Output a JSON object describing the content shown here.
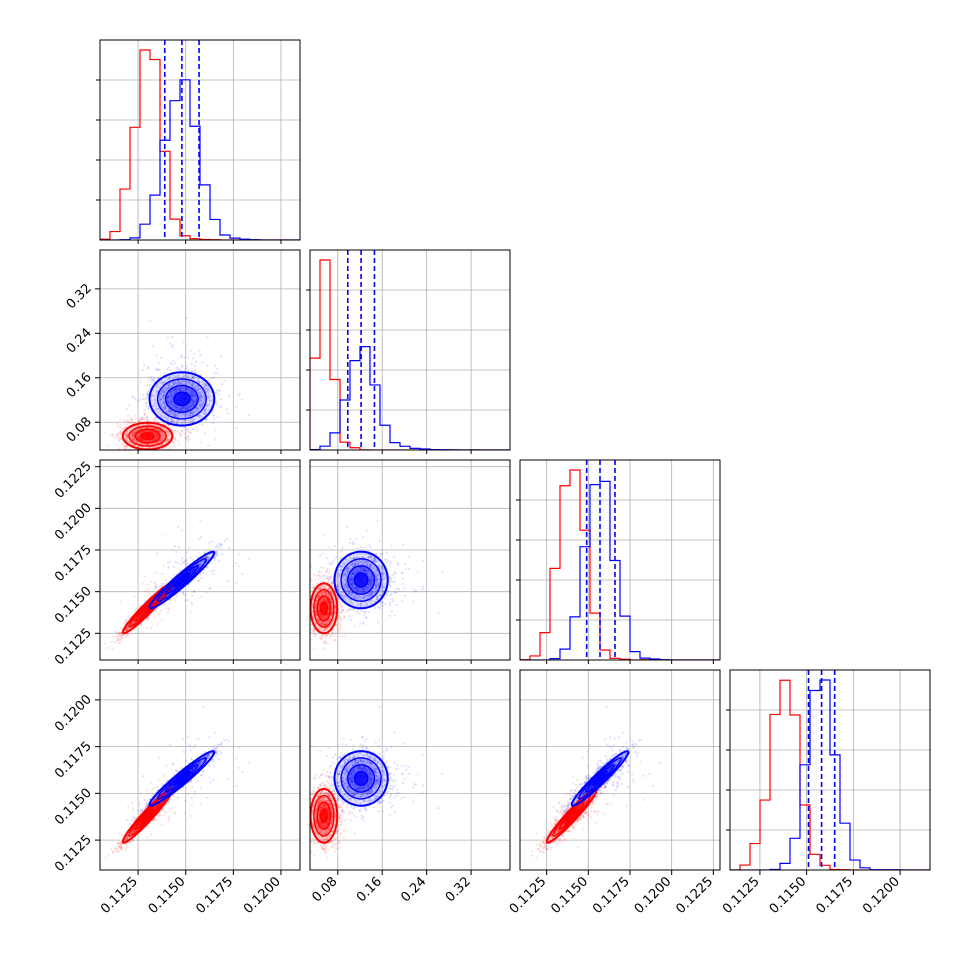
{
  "chart_data": {
    "type": "corner",
    "title": "",
    "grid": true,
    "legend": "none",
    "colors": {
      "red": "#ff0000",
      "blue": "#0000ff"
    },
    "parameters": [
      {
        "range": [
          0.1105,
          0.121
        ],
        "ticks": [
          "0.1125",
          "0.1150",
          "0.1175",
          "0.1200"
        ],
        "tick_values": [
          0.1125,
          0.115,
          0.1175,
          0.12
        ]
      },
      {
        "range": [
          0.03,
          0.39
        ],
        "ticks": [
          "0.08",
          "0.16",
          "0.24",
          "0.32"
        ],
        "tick_values": [
          0.08,
          0.16,
          0.24,
          0.32
        ]
      },
      {
        "range": [
          0.1109,
          0.1229
        ],
        "ticks": [
          "0.1125",
          "0.1150",
          "0.1175",
          "0.1200",
          "0.1225"
        ],
        "tick_values": [
          0.1125,
          0.115,
          0.1175,
          0.12,
          0.1225
        ]
      },
      {
        "range": [
          0.1109,
          0.1216
        ],
        "ticks": [
          "0.1125",
          "0.1150",
          "0.1175",
          "0.1200"
        ],
        "tick_values": [
          0.1125,
          0.115,
          0.1175,
          0.12
        ]
      }
    ],
    "series": [
      {
        "color": "#ff0000",
        "mean": [
          0.113,
          0.055,
          0.114,
          0.1138
        ],
        "sd": [
          0.00065,
          0.012,
          0.00075,
          0.00072
        ],
        "quantile_lines": []
      },
      {
        "color": "#0000ff",
        "mean": [
          0.1148,
          0.122,
          0.1157,
          0.1158
        ],
        "sd": [
          0.00085,
          0.024,
          0.00085,
          0.00073
        ],
        "quantile_lines": [
          [
            0.1139,
            0.1148,
            0.1157
          ],
          [
            0.098,
            0.122,
            0.146
          ],
          [
            0.1149,
            0.1157,
            0.1166
          ],
          [
            0.1151,
            0.1158,
            0.1165
          ]
        ]
      }
    ],
    "correlations": [
      {
        "pair": [
          0,
          2
        ],
        "red": 0.96,
        "blue": 0.96
      },
      {
        "pair": [
          0,
          3
        ],
        "red": 0.96,
        "blue": 0.96
      },
      {
        "pair": [
          2,
          3
        ],
        "red": 0.96,
        "blue": 0.96
      },
      {
        "pair": [
          0,
          1
        ],
        "red": 0.0,
        "blue": 0.0
      },
      {
        "pair": [
          1,
          2
        ],
        "red": 0.0,
        "blue": 0.0
      },
      {
        "pair": [
          1,
          3
        ],
        "red": 0.0,
        "blue": 0.0
      }
    ]
  }
}
